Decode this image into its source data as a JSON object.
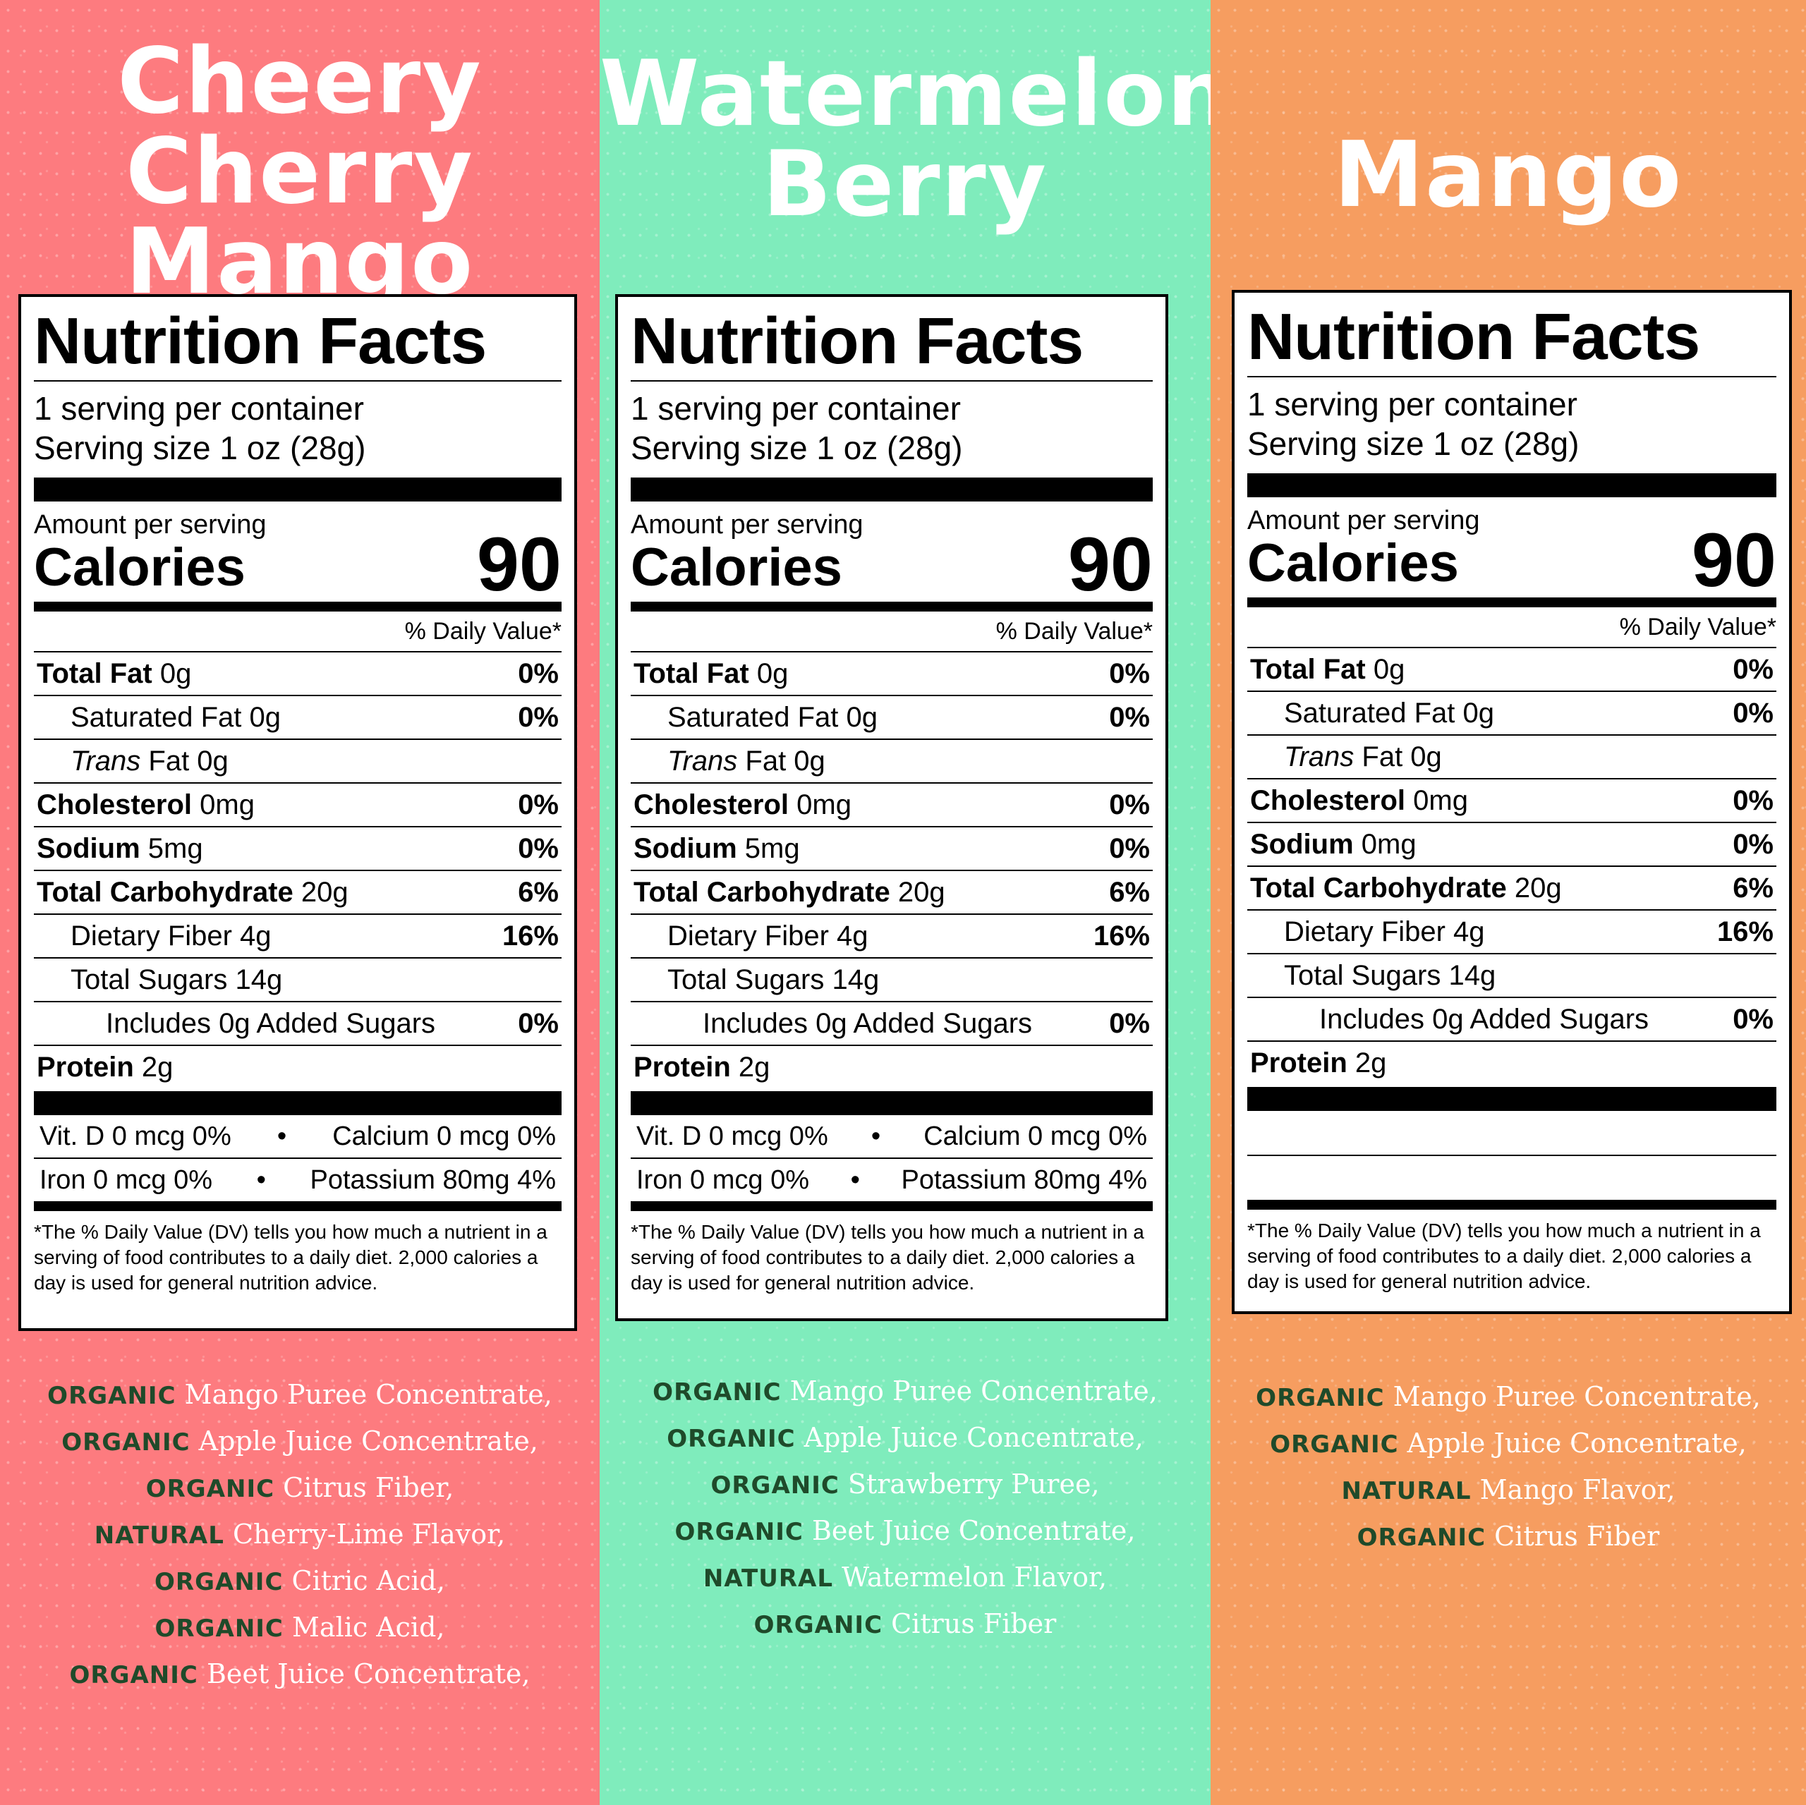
{
  "panels": [
    {
      "flavor": [
        "Cheery",
        "Cherry Mango"
      ],
      "bg": "#fd7b7f",
      "title": "Nutrition Facts",
      "servings": "1 serving per container",
      "serving_size": "Serving size 1 oz (28g)",
      "amount_per_serving": "Amount per serving",
      "calories_label": "Calories",
      "calories": "90",
      "dv_header": "% Daily Value*",
      "total_fat": "Total Fat",
      "total_fat_amt": " 0g",
      "total_fat_pct": "0%",
      "sat_fat": "Saturated Fat 0g",
      "sat_fat_pct": "0%",
      "trans_fat_i": "Trans",
      "trans_fat": " Fat 0g",
      "cholesterol": "Cholesterol",
      "cholesterol_amt": " 0mg",
      "cholesterol_pct": "0%",
      "sodium": "Sodium",
      "sodium_amt": " 5mg",
      "sodium_pct": "0%",
      "carb": "Total Carbohydrate",
      "carb_amt": " 20g",
      "carb_pct": "6%",
      "fiber": "Dietary Fiber 4g",
      "fiber_pct": "16%",
      "sugars": "Total Sugars 14g",
      "added_sugars": "Includes 0g Added Sugars",
      "added_sugars_pct": "0%",
      "protein": "Protein",
      "protein_amt": " 2g",
      "vit_d": "Vit. D 0 mcg 0%",
      "calcium": "Calcium   0 mcg 0%",
      "iron": "Iron 0 mcg 0%",
      "potassium": "Potassium 80mg 4%",
      "dot": "•",
      "footnote": "*The % Daily Value (DV) tells you how much a nutrient in a serving of food contributes to a daily diet. 2,000 calories a day is used for general nutrition advice.",
      "ingredients": [
        {
          "kw": "ORGANIC",
          "text": " Mango Puree Concentrate,"
        },
        {
          "kw": "ORGANIC",
          "text": " Apple Juice Concentrate,"
        },
        {
          "kw": "ORGANIC",
          "text": " Citrus Fiber,"
        },
        {
          "kw": "NATURAL",
          "text": " Cherry-Lime Flavor,"
        },
        {
          "kw": "ORGANIC",
          "text": " Citric Acid,"
        },
        {
          "kw": "ORGANIC",
          "text": " Malic Acid,"
        },
        {
          "kw": "ORGANIC",
          "text": " Beet Juice Concentrate,"
        }
      ]
    },
    {
      "flavor": [
        "Watermelon",
        "Berry"
      ],
      "bg": "#7fecbc",
      "title": "Nutrition Facts",
      "servings": "1 serving per container",
      "serving_size": "Serving size 1 oz (28g)",
      "amount_per_serving": "Amount per serving",
      "calories_label": "Calories",
      "calories": "90",
      "dv_header": "% Daily Value*",
      "total_fat": "Total Fat",
      "total_fat_amt": " 0g",
      "total_fat_pct": "0%",
      "sat_fat": "Saturated Fat 0g",
      "sat_fat_pct": "0%",
      "trans_fat_i": "Trans",
      "trans_fat": " Fat 0g",
      "cholesterol": "Cholesterol",
      "cholesterol_amt": " 0mg",
      "cholesterol_pct": "0%",
      "sodium": "Sodium",
      "sodium_amt": " 5mg",
      "sodium_pct": "0%",
      "carb": "Total Carbohydrate",
      "carb_amt": " 20g",
      "carb_pct": "6%",
      "fiber": "Dietary Fiber 4g",
      "fiber_pct": "16%",
      "sugars": "Total Sugars 14g",
      "added_sugars": "Includes 0g Added Sugars",
      "added_sugars_pct": "0%",
      "protein": "Protein",
      "protein_amt": " 2g",
      "vit_d": "Vit. D 0 mcg 0%",
      "calcium": "Calcium   0 mcg 0%",
      "iron": "Iron 0 mcg 0%",
      "potassium": "Potassium 80mg 4%",
      "dot": "•",
      "footnote": "*The % Daily Value (DV) tells you how much a nutrient in a serving of food contributes to a daily diet. 2,000 calories a day is used for general nutrition advice.",
      "ingredients": [
        {
          "kw": "ORGANIC",
          "text": " Mango Puree Concentrate,"
        },
        {
          "kw": "ORGANIC",
          "text": " Apple Juice Concentrate,"
        },
        {
          "kw": "ORGANIC",
          "text": " Strawberry Puree,"
        },
        {
          "kw": "ORGANIC",
          "text": " Beet Juice Concentrate,"
        },
        {
          "kw": "NATURAL",
          "text": " Watermelon Flavor,"
        },
        {
          "kw": "ORGANIC",
          "text": " Citrus Fiber"
        }
      ]
    },
    {
      "flavor": [
        "Mango"
      ],
      "bg": "#f69d60",
      "title": "Nutrition Facts",
      "servings": "1 serving per container",
      "serving_size": "Serving size 1 oz (28g)",
      "amount_per_serving": "Amount per serving",
      "calories_label": "Calories",
      "calories": "90",
      "dv_header": "% Daily Value*",
      "total_fat": "Total Fat",
      "total_fat_amt": " 0g",
      "total_fat_pct": "0%",
      "sat_fat": "Saturated Fat 0g",
      "sat_fat_pct": "0%",
      "trans_fat_i": "Trans",
      "trans_fat": " Fat 0g",
      "cholesterol": "Cholesterol",
      "cholesterol_amt": " 0mg",
      "cholesterol_pct": "0%",
      "sodium": "Sodium",
      "sodium_amt": " 0mg",
      "sodium_pct": "0%",
      "carb": "Total Carbohydrate",
      "carb_amt": " 20g",
      "carb_pct": "6%",
      "fiber": "Dietary Fiber 4g",
      "fiber_pct": "16%",
      "sugars": "Total Sugars 14g",
      "added_sugars": "Includes 0g Added Sugars",
      "added_sugars_pct": "0%",
      "protein": "Protein",
      "protein_amt": " 2g",
      "footnote": "*The % Daily Value (DV) tells you how much a nutrient in a serving of food contributes to a daily diet. 2,000 calories a day is used for general nutrition advice.",
      "ingredients": [
        {
          "kw": "ORGANIC",
          "text": " Mango Puree Concentrate,"
        },
        {
          "kw": "ORGANIC",
          "text": " Apple Juice Concentrate,"
        },
        {
          "kw": "NATURAL",
          "text": " Mango Flavor,"
        },
        {
          "kw": "ORGANIC",
          "text": " Citrus Fiber"
        }
      ]
    }
  ]
}
